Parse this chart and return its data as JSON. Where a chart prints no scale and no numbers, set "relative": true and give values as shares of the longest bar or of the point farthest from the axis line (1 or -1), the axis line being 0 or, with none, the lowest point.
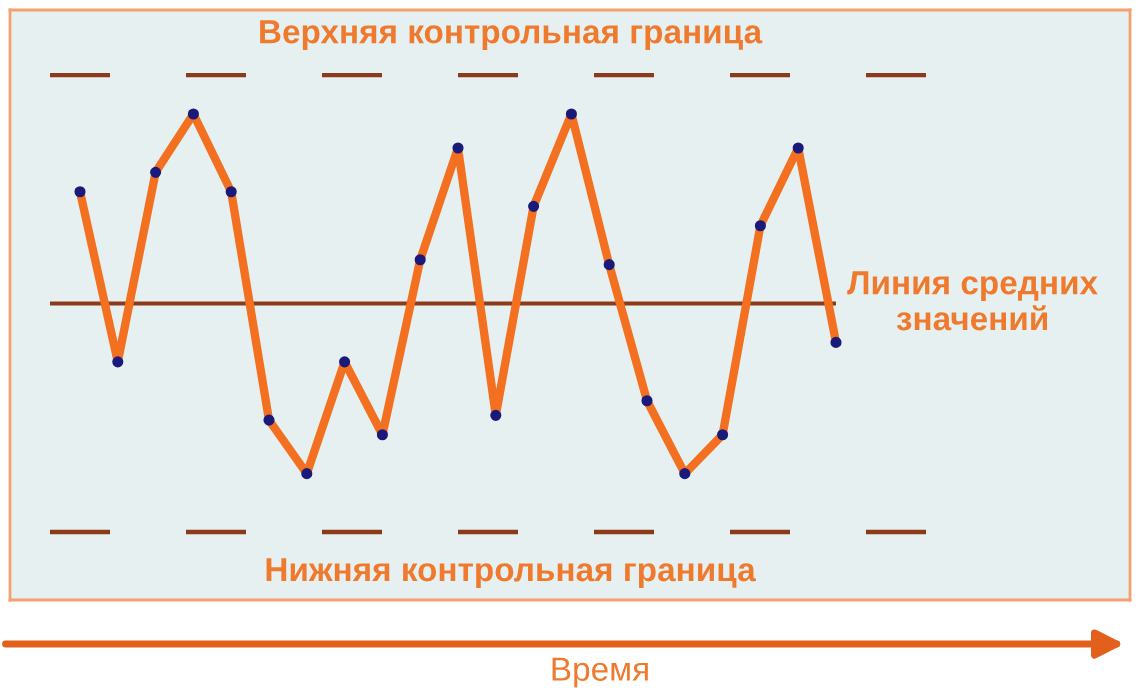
{
  "chart_data": {
    "type": "line",
    "relative": true,
    "annotations": [
      "Время"
    ],
    "categories": [
      null,
      null,
      null,
      null,
      null,
      null,
      null,
      null,
      null,
      null,
      null,
      null,
      null,
      null,
      null,
      null,
      null,
      null,
      null,
      null,
      null
    ],
    "series": [
      {
        "color": "#f37021",
        "values": [
          0.84,
          0.49,
          0.88,
          1.0,
          0.84,
          0.37,
          0.26,
          0.49,
          0.34,
          0.7,
          0.93,
          0.38,
          0.81,
          1.0,
          0.69,
          0.41,
          0.26,
          0.34,
          0.77,
          0.93,
          0.53
        ]
      }
    ],
    "marker": "circle",
    "line_style": "solid",
    "grid": false,
    "legend": false,
    "ref_lines": [
      {
        "axis": "y",
        "value": 1.08,
        "label": "Верхняя контрольная граница",
        "color": "#8b3a1a",
        "line_style": "dashed"
      },
      {
        "axis": "y",
        "value": 0.61,
        "label": "Линия средних\nзначений",
        "color": "#8b3a1a",
        "line_style": "solid"
      },
      {
        "axis": "y",
        "value": 0.14,
        "label": "Нижняя контрольная граница",
        "color": "#8b3a1a",
        "line_style": "dashed"
      }
    ]
  }
}
